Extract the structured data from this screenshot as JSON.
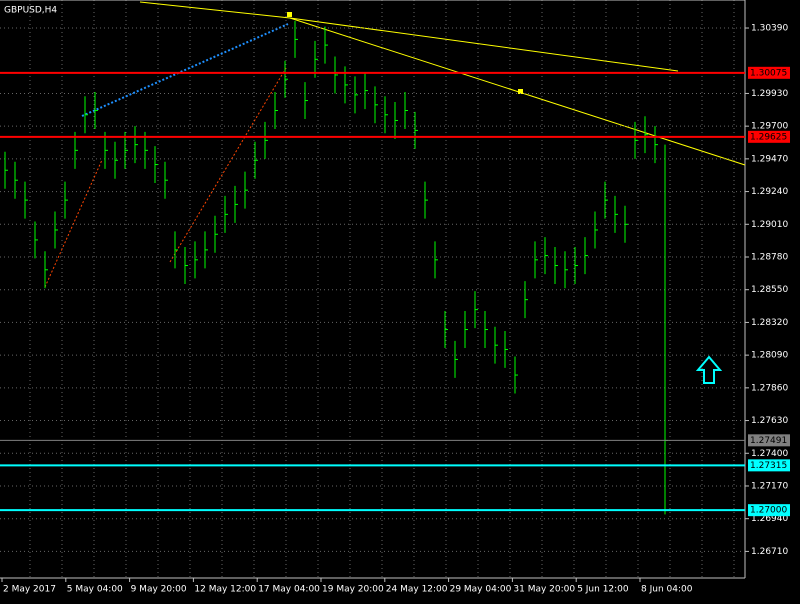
{
  "chart_data": {
    "type": "ohlc",
    "title": "GBPUSD,H4",
    "color": "#00ff00",
    "grid": true,
    "ylim": [
      1.26523,
      1.30587
    ],
    "yticks": [
      {
        "value": 1.3039,
        "label": "1.30390"
      },
      {
        "value": 1.2993,
        "label": "1.29930"
      },
      {
        "value": 1.297,
        "label": "1.29700"
      },
      {
        "value": 1.2947,
        "label": "1.29470"
      },
      {
        "value": 1.2924,
        "label": "1.29240"
      },
      {
        "value": 1.2901,
        "label": "1.29010"
      },
      {
        "value": 1.2878,
        "label": "1.28780"
      },
      {
        "value": 1.2855,
        "label": "1.28550"
      },
      {
        "value": 1.2832,
        "label": "1.28320"
      },
      {
        "value": 1.2809,
        "label": "1.28090"
      },
      {
        "value": 1.2786,
        "label": "1.27860"
      },
      {
        "value": 1.2763,
        "label": "1.27630"
      },
      {
        "value": 1.274,
        "label": "1.27400"
      },
      {
        "value": 1.2717,
        "label": "1.27170"
      },
      {
        "value": 1.2694,
        "label": "1.26940"
      },
      {
        "value": 1.2671,
        "label": "1.26710"
      }
    ],
    "time_labels": [
      "2 May 2017",
      "5 May 04:00",
      "9 May 20:00",
      "12 May 12:00",
      "17 May 04:00",
      "19 May 20:00",
      "24 May 12:00",
      "29 May 04:00",
      "31 May 20:00",
      "5 Jun 12:00",
      "8 Jun 04:00"
    ],
    "levels": [
      {
        "value": 1.30075,
        "label": "1.30075",
        "color": "#ff0000"
      },
      {
        "value": 1.29625,
        "label": "1.29625",
        "color": "#ff0000"
      },
      {
        "value": 1.27491,
        "label": "1.27491",
        "color": "#808080"
      },
      {
        "value": 1.27315,
        "label": "1.27315",
        "color": "#00ffff"
      },
      {
        "value": 1.27,
        "label": "1.27000",
        "color": "#00ffff"
      }
    ],
    "high": [
      1.2952,
      1.2945,
      1.2931,
      1.2903,
      1.2882,
      1.291,
      1.2931,
      1.2966,
      1.2991,
      1.2994,
      1.2966,
      1.2959,
      1.2966,
      1.297,
      1.2966,
      1.2956,
      1.2945,
      1.2896,
      1.2885,
      1.2889,
      1.2896,
      1.2907,
      1.2921,
      1.2928,
      1.2938,
      1.2959,
      1.2973,
      1.2994,
      1.3016,
      1.3044,
      1.3001,
      1.303,
      1.304,
      1.3019,
      1.3012,
      1.3005,
      1.3008,
      1.2998,
      1.2991,
      1.2987,
      1.2994,
      1.298,
      1.2931,
      1.2889,
      1.284,
      1.2819,
      1.284,
      1.2854,
      1.284,
      1.2829,
      1.2826,
      1.2808,
      1.2861,
      1.2889,
      1.2892,
      1.2885,
      1.2882,
      1.2885,
      1.2892,
      1.291,
      1.2931,
      1.2921,
      1.2914,
      1.2973,
      1.2977,
      1.297,
      1.2957
    ],
    "low": [
      1.2926,
      1.2919,
      1.2905,
      1.2877,
      1.2856,
      1.2884,
      1.2905,
      1.294,
      1.2965,
      1.2968,
      1.294,
      1.2933,
      1.294,
      1.2944,
      1.294,
      1.293,
      1.2919,
      1.287,
      1.2859,
      1.2863,
      1.287,
      1.2881,
      1.2895,
      1.2902,
      1.2912,
      1.2933,
      1.2947,
      1.2968,
      1.299,
      1.3018,
      1.2975,
      1.3004,
      1.3014,
      1.2993,
      1.2986,
      1.2979,
      1.2982,
      1.2972,
      1.2965,
      1.2961,
      1.2968,
      1.2954,
      1.2905,
      1.2863,
      1.2814,
      1.2793,
      1.2814,
      1.2828,
      1.2814,
      1.2803,
      1.28,
      1.2782,
      1.2835,
      1.2863,
      1.2866,
      1.2859,
      1.2856,
      1.2859,
      1.2866,
      1.2884,
      1.2905,
      1.2895,
      1.2888,
      1.2947,
      1.2951,
      1.2944,
      1.2697
    ],
    "close": [
      1.2939,
      1.2932,
      1.2918,
      1.289,
      1.2869,
      1.2897,
      1.2918,
      1.2953,
      1.2978,
      1.2981,
      1.2953,
      1.2946,
      1.2953,
      1.2957,
      1.2953,
      1.2943,
      1.2932,
      1.2883,
      1.2872,
      1.2876,
      1.2883,
      1.2894,
      1.2908,
      1.2915,
      1.2925,
      1.2946,
      1.296,
      1.2981,
      1.3003,
      1.3031,
      1.2988,
      1.3017,
      1.3027,
      1.3006,
      1.2999,
      1.2992,
      1.2995,
      1.2985,
      1.2978,
      1.2974,
      1.2981,
      1.2967,
      1.2918,
      1.2876,
      1.2827,
      1.2806,
      1.2827,
      1.2841,
      1.2827,
      1.2816,
      1.2813,
      1.2795,
      1.2848,
      1.2876,
      1.2879,
      1.2872,
      1.2869,
      1.2872,
      1.2879,
      1.2897,
      1.2918,
      1.2908,
      1.2901,
      1.296,
      1.2964,
      1.2957,
      1.2749
    ]
  }
}
